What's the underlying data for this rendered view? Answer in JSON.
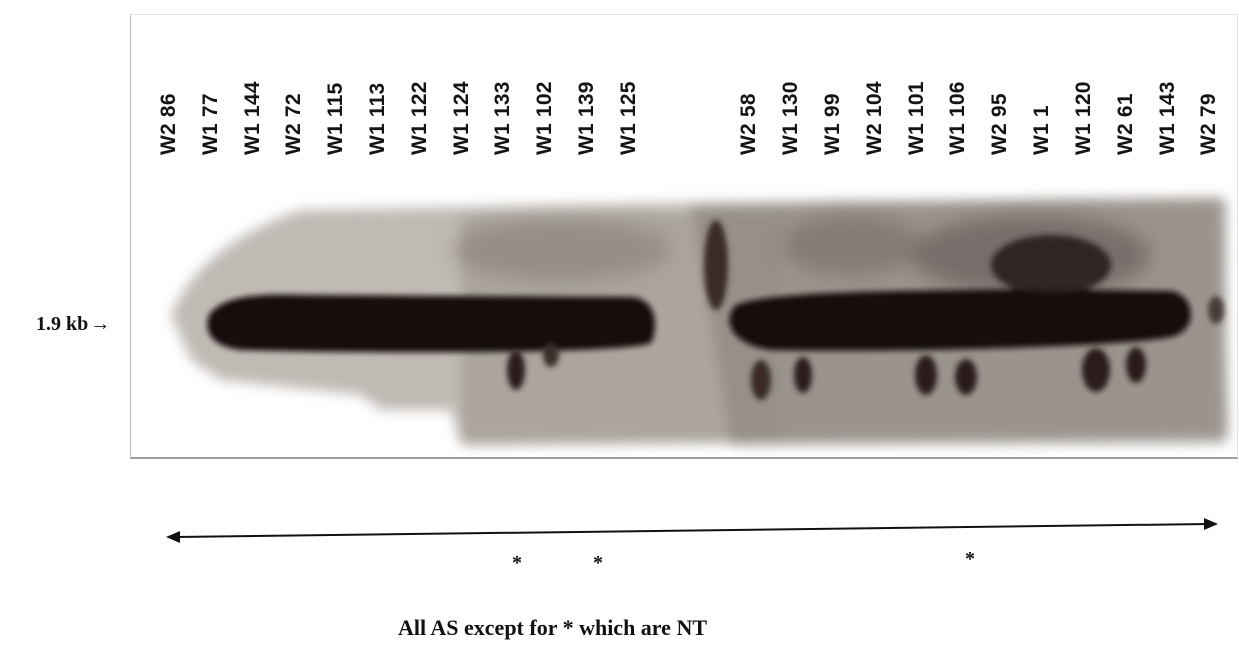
{
  "figure": {
    "lanes": [
      {
        "label": "W2 86"
      },
      {
        "label": "W1 77"
      },
      {
        "label": "W1 144"
      },
      {
        "label": "W2 72"
      },
      {
        "label": "W1 115"
      },
      {
        "label": "W1 113"
      },
      {
        "label": "W1 122"
      },
      {
        "label": "W1 124"
      },
      {
        "label": "W1 133"
      },
      {
        "label": "W1 102"
      },
      {
        "label": "W1 139"
      },
      {
        "label": "W1 125"
      },
      {
        "label": "W2 58"
      },
      {
        "label": "W1 130"
      },
      {
        "label": "W1 99"
      },
      {
        "label": "W2 104"
      },
      {
        "label": "W1 101"
      },
      {
        "label": "W1 106"
      },
      {
        "label": "W2 95"
      },
      {
        "label": "W1 1"
      },
      {
        "label": "W1 120"
      },
      {
        "label": "W2 61"
      },
      {
        "label": "W1 143"
      },
      {
        "label": "W2 79"
      }
    ],
    "size_marker": {
      "text": "1.9 kb",
      "arrow": "→"
    },
    "asterisk_symbol": "*",
    "caption": "All AS except for  *  which are NT",
    "colors": {
      "band": "#151010",
      "background_smear": "#8c8680",
      "frame": "#9e9e9e"
    }
  }
}
